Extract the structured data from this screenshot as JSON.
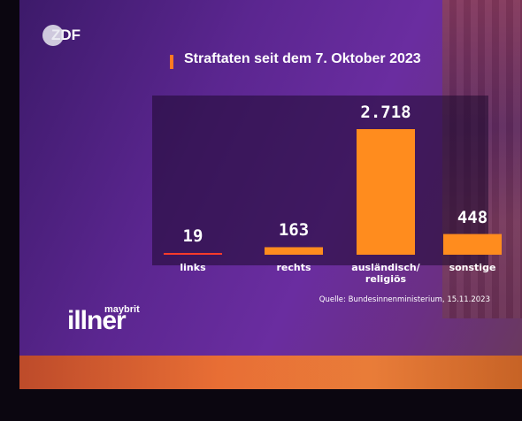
{
  "channel_logo": "ZDF",
  "show_logo": {
    "small": "maybrit",
    "big": "illner"
  },
  "source": "Quelle: Bundesinnenministerium, 15.11.2023",
  "colors": {
    "bar": "#ff8c1e",
    "title_accent": "#ff7a22"
  },
  "chart_data": {
    "type": "bar",
    "title": "Straftaten seit dem 7. Oktober 2023",
    "categories": [
      "links",
      "rechts",
      "ausländisch/\nreligiös",
      "sonstige"
    ],
    "values": [
      19,
      163,
      2718,
      448
    ],
    "value_labels": [
      "19",
      "163",
      "2.718",
      "448"
    ],
    "xlabel": "",
    "ylabel": "",
    "ylim": [
      0,
      2718
    ],
    "grid": false,
    "legend": "none"
  }
}
